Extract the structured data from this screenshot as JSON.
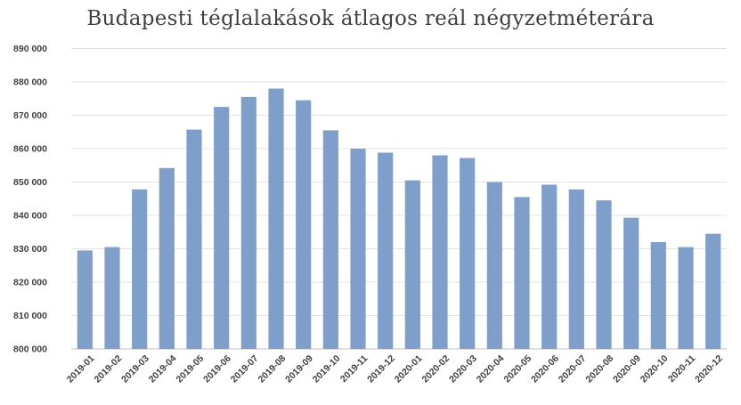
{
  "chart_data": {
    "type": "bar",
    "title": "Budapesti téglalakások átlagos reál négyzetméterára",
    "xlabel": "",
    "ylabel": "",
    "categories": [
      "2019-01",
      "2019-02",
      "2019-03",
      "2019-04",
      "2019-05",
      "2019-06",
      "2019-07",
      "2019-08",
      "2019-09",
      "2019-10",
      "2019-11",
      "2019-12",
      "2020-01",
      "2020-02",
      "2020-03",
      "2020-04",
      "2020-05",
      "2020-06",
      "2020-07",
      "2020-08",
      "2020-09",
      "2020-10",
      "2020-11",
      "2020-12"
    ],
    "values": [
      829500,
      830500,
      847800,
      854200,
      865700,
      872500,
      875500,
      878000,
      874500,
      865500,
      860000,
      858800,
      850500,
      858000,
      857200,
      850000,
      845500,
      849200,
      847800,
      844500,
      839300,
      832000,
      830500,
      834500
    ],
    "ylim": [
      800000,
      890000
    ],
    "yticks": [
      {
        "value": 800000,
        "label": "800 000"
      },
      {
        "value": 810000,
        "label": "810 000"
      },
      {
        "value": 820000,
        "label": "820 000"
      },
      {
        "value": 830000,
        "label": "830 000"
      },
      {
        "value": 840000,
        "label": "840 000"
      },
      {
        "value": 850000,
        "label": "850 000"
      },
      {
        "value": 860000,
        "label": "860 000"
      },
      {
        "value": 870000,
        "label": "870 000"
      },
      {
        "value": 880000,
        "label": "880 000"
      },
      {
        "value": 890000,
        "label": "890 000"
      }
    ],
    "grid": true,
    "legend": "none",
    "bar_color": "#7f9fcb"
  }
}
